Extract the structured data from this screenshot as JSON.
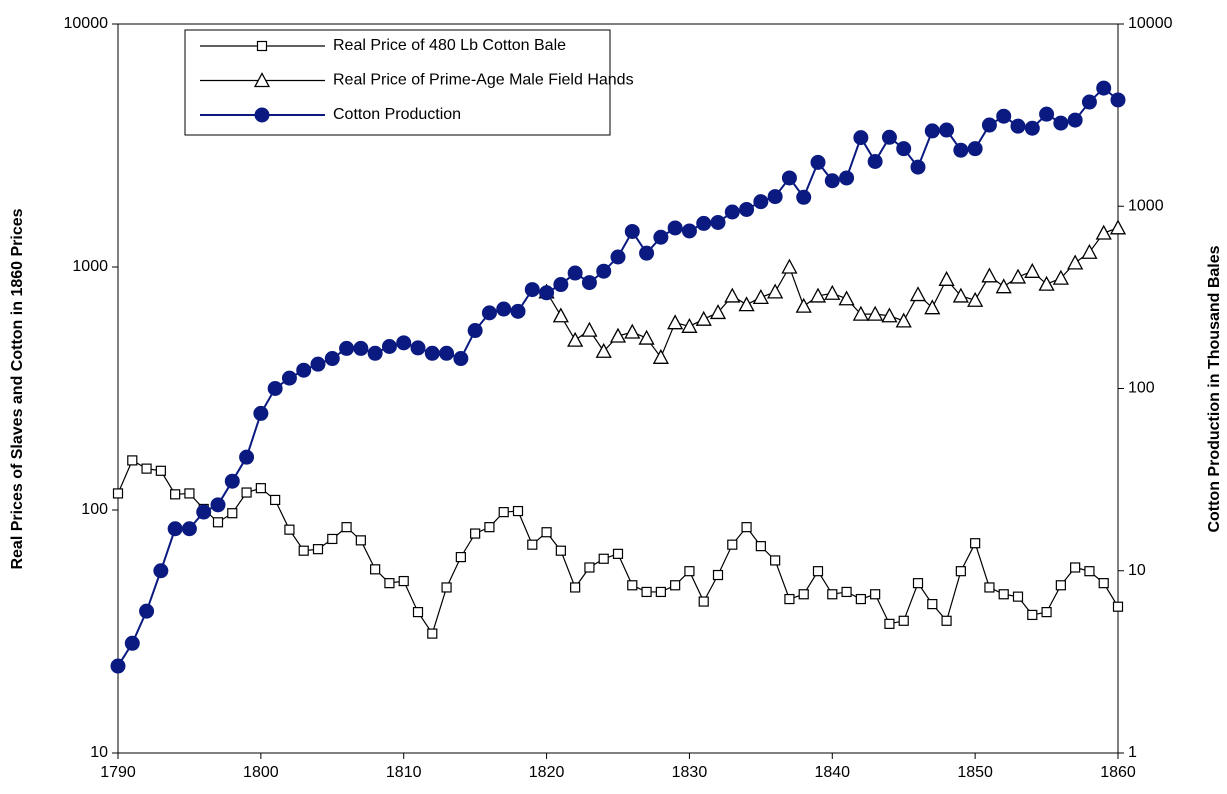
{
  "chart_data": {
    "type": "line",
    "ylabel": "Real Prices of Slaves and Cotton in 1860 Prices",
    "y2label": "Cotton Production in Thousand Bales",
    "x": [
      1790,
      1791,
      1792,
      1793,
      1794,
      1795,
      1796,
      1797,
      1798,
      1799,
      1800,
      1801,
      1802,
      1803,
      1804,
      1805,
      1806,
      1807,
      1808,
      1809,
      1810,
      1811,
      1812,
      1813,
      1814,
      1815,
      1816,
      1817,
      1818,
      1819,
      1820,
      1821,
      1822,
      1823,
      1824,
      1825,
      1826,
      1827,
      1828,
      1829,
      1830,
      1831,
      1832,
      1833,
      1834,
      1835,
      1836,
      1837,
      1838,
      1839,
      1840,
      1841,
      1842,
      1843,
      1844,
      1845,
      1846,
      1847,
      1848,
      1849,
      1850,
      1851,
      1852,
      1853,
      1854,
      1855,
      1856,
      1857,
      1858,
      1859,
      1860
    ],
    "xlim": [
      1790,
      1860
    ],
    "xticks": [
      1790,
      1800,
      1810,
      1820,
      1830,
      1840,
      1850,
      1860
    ],
    "ylim": [
      10,
      10000
    ],
    "yticks": [
      10,
      100,
      1000,
      10000
    ],
    "yscale": "log",
    "y2lim": [
      1,
      10000
    ],
    "y2ticks": [
      1,
      10,
      100,
      1000,
      10000
    ],
    "y2scale": "log",
    "legend": "upper left",
    "series": [
      {
        "name": "Real Price of 480 Lb Cotton Bale",
        "color": "#000000",
        "marker": "square",
        "values": [
          117,
          160,
          148,
          145,
          116,
          117,
          101,
          89,
          97,
          118,
          123,
          110,
          83,
          68,
          69,
          76,
          85,
          75,
          57,
          50,
          51,
          38,
          31,
          48,
          64,
          80,
          85,
          98,
          99,
          72,
          81,
          68,
          48,
          58,
          63,
          66,
          49,
          46,
          46,
          49,
          56,
          42,
          54,
          72,
          85,
          71,
          62,
          43,
          45,
          56,
          45,
          46,
          43,
          45,
          34,
          35,
          50,
          41,
          35,
          56,
          73,
          48,
          45,
          44,
          37,
          38,
          49,
          58,
          56,
          50,
          40
        ]
      },
      {
        "name": "Real Price of Prime-Age Male Field Hands",
        "color": "#000000",
        "marker": "triangle",
        "values": [
          null,
          null,
          null,
          null,
          null,
          null,
          null,
          null,
          null,
          null,
          null,
          null,
          null,
          null,
          null,
          null,
          null,
          null,
          null,
          null,
          null,
          null,
          null,
          null,
          null,
          null,
          null,
          null,
          null,
          null,
          790,
          630,
          500,
          550,
          450,
          520,
          540,
          510,
          425,
          590,
          570,
          610,
          650,
          760,
          700,
          750,
          790,
          1000,
          690,
          760,
          780,
          740,
          640,
          640,
          630,
          600,
          770,
          680,
          890,
          760,
          730,
          920,
          830,
          910,
          960,
          850,
          900,
          1040,
          1150,
          1380,
          1450
        ]
      },
      {
        "name": "Cotton Production",
        "color": "#0a1a80",
        "marker": "circle",
        "axis": "y2",
        "values": [
          3,
          4,
          6,
          10,
          17,
          17,
          21,
          23,
          31,
          42,
          73,
          100,
          114,
          126,
          136,
          146,
          166,
          166,
          156,
          170,
          178,
          167,
          156,
          156,
          146,
          208,
          260,
          273,
          265,
          349,
          335,
          372,
          430,
          381,
          440,
          527,
          727,
          553,
          676,
          760,
          732,
          805,
          815,
          930,
          960,
          1060,
          1130,
          1430,
          1120,
          1740,
          1380,
          1430,
          2380,
          1760,
          2390,
          2070,
          1640,
          2590,
          2620,
          2030,
          2070,
          2790,
          3120,
          2750,
          2680,
          3200,
          2860,
          2970,
          3730,
          4450,
          3830
        ]
      }
    ]
  }
}
